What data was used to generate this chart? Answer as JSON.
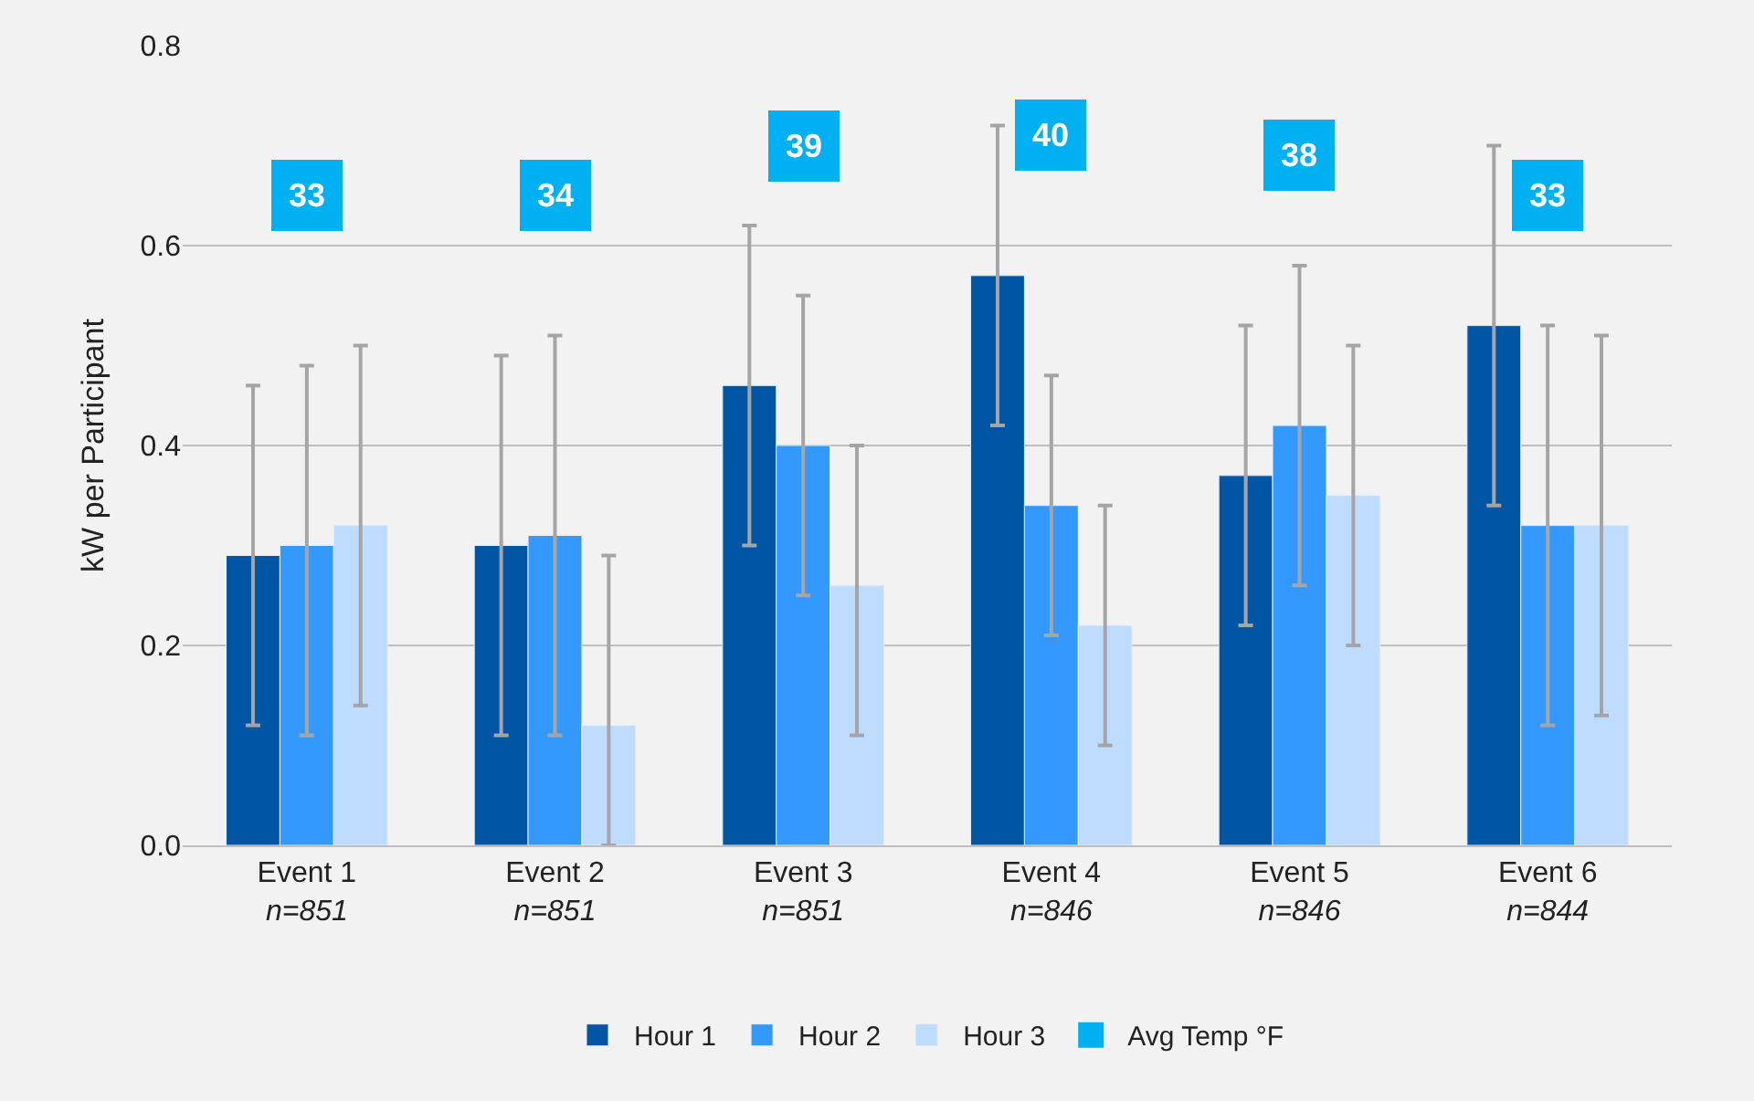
{
  "chart_data": {
    "type": "bar",
    "ylabel": "kW per Participant",
    "categories": [
      "Event 1\nn=851",
      "Event 2\nn=851",
      "Event 3\nn=851",
      "Event 4\nn=846",
      "Event 5\nn=846",
      "Event 6\nn=844"
    ],
    "series": [
      {
        "name": "Hour 1",
        "color": "#0055a5",
        "values": [
          0.29,
          0.3,
          0.46,
          0.57,
          0.37,
          0.52
        ],
        "errors": [
          [
            0.12,
            0.46
          ],
          [
            0.11,
            0.49
          ],
          [
            0.3,
            0.62
          ],
          [
            0.42,
            0.72
          ],
          [
            0.22,
            0.52
          ],
          [
            0.34,
            0.7
          ]
        ]
      },
      {
        "name": "Hour 2",
        "color": "#3399ff",
        "values": [
          0.3,
          0.31,
          0.4,
          0.34,
          0.42,
          0.32
        ],
        "errors": [
          [
            0.11,
            0.48
          ],
          [
            0.11,
            0.51
          ],
          [
            0.25,
            0.55
          ],
          [
            0.21,
            0.47
          ],
          [
            0.26,
            0.58
          ],
          [
            0.12,
            0.52
          ]
        ]
      },
      {
        "name": "Hour 3",
        "color": "#bddcff",
        "values": [
          0.32,
          0.12,
          0.26,
          0.22,
          0.35,
          0.32
        ],
        "errors": [
          [
            0.14,
            0.5
          ],
          [
            0.0,
            0.29
          ],
          [
            0.11,
            0.4
          ],
          [
            0.1,
            0.34
          ],
          [
            0.2,
            0.5
          ],
          [
            0.13,
            0.51
          ]
        ]
      },
      {
        "name": "Avg Temp °F",
        "type": "scatter",
        "marker": "square",
        "color": "#00b0f0",
        "values": [
          null,
          null,
          null,
          null,
          null,
          null
        ]
      }
    ],
    "annotations": [
      {
        "text": "33",
        "x": "Event 1\nn=851",
        "y": 0.65
      },
      {
        "text": "34",
        "x": "Event 2\nn=851",
        "y": 0.65
      },
      {
        "text": "39",
        "x": "Event 3\nn=851",
        "y": 0.7
      },
      {
        "text": "40",
        "x": "Event 4\nn=846",
        "y": 0.71
      },
      {
        "text": "38",
        "x": "Event 5\nn=846",
        "y": 0.69
      },
      {
        "text": "33",
        "x": "Event 6\nn=844",
        "y": 0.65
      }
    ],
    "ylim": [
      0,
      0.8
    ],
    "yticks": [
      {
        "value": 0,
        "label": "0.0"
      },
      {
        "value": 0.2,
        "label": "0.2"
      },
      {
        "value": 0.4,
        "label": "0.4"
      },
      {
        "value": 0.6,
        "label": "0.6"
      },
      {
        "value": 0.8,
        "label": "0.8"
      }
    ],
    "grid": "y",
    "legend": "bottom"
  }
}
